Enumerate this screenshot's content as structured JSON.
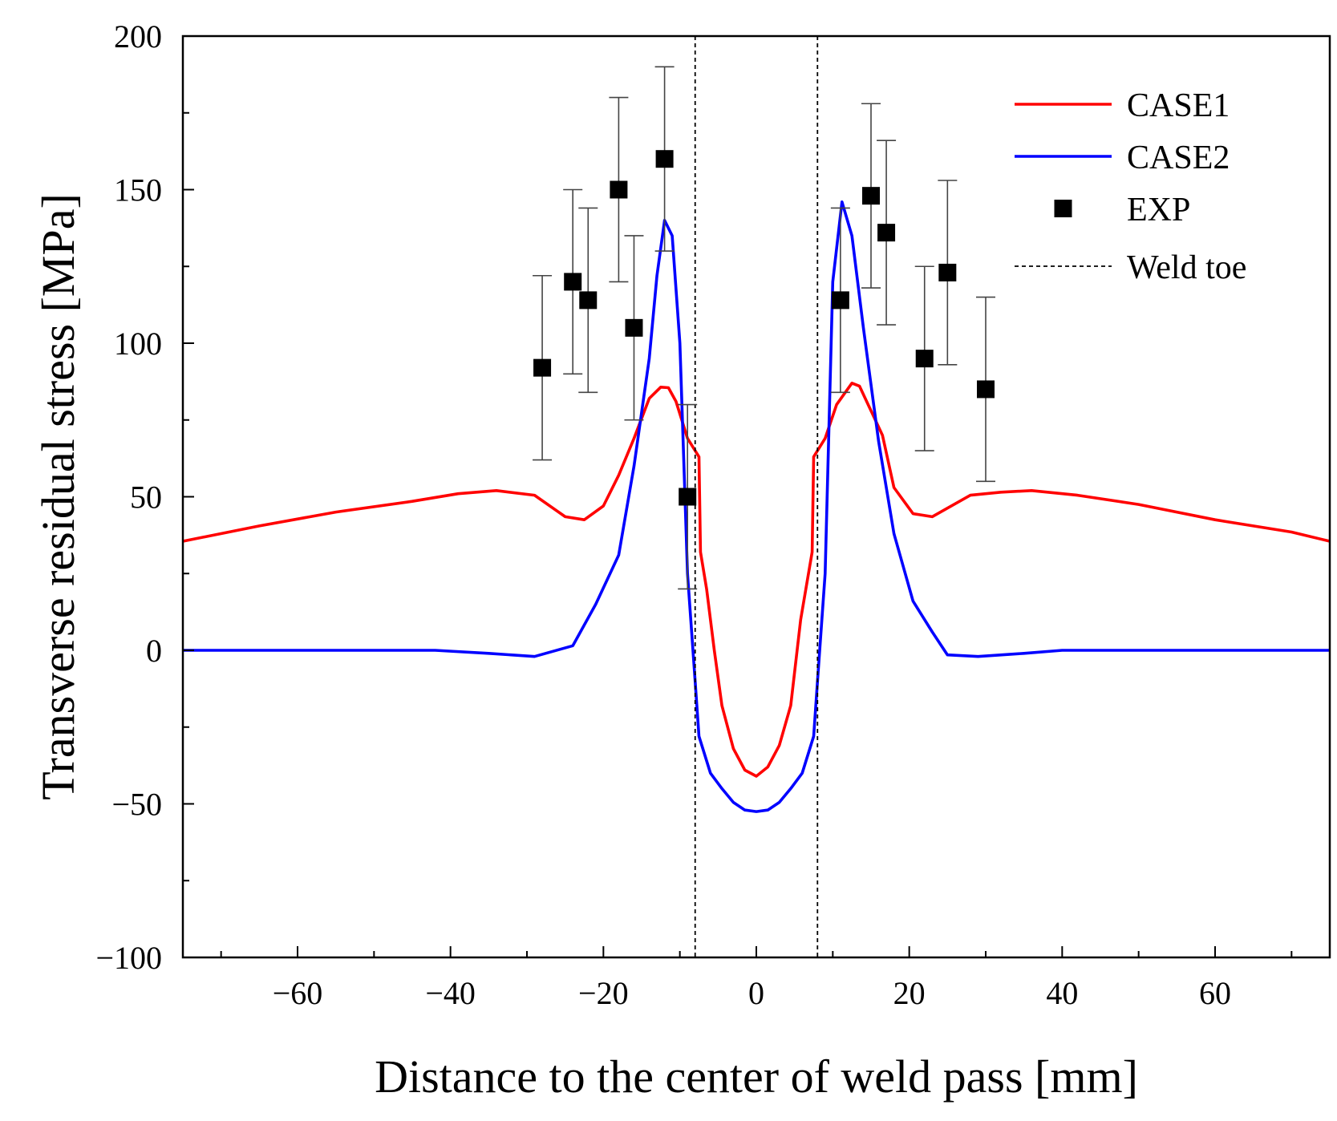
{
  "chart_data": {
    "type": "line",
    "title": "",
    "xlabel": "Distance to the center of weld pass [mm]",
    "ylabel": "Transverse residual stress [MPa]",
    "xlim": [
      -75,
      75
    ],
    "ylim": [
      -100,
      200
    ],
    "xticks": [
      -60,
      -40,
      -20,
      0,
      20,
      40,
      60
    ],
    "yticks": [
      -100,
      -50,
      0,
      50,
      100,
      150,
      200
    ],
    "x_minor_step": 10,
    "y_minor_step": 25,
    "legend_position": "top-right",
    "grid": false,
    "series": [
      {
        "name": "CASE1",
        "kind": "line",
        "color": "#ff0000",
        "points": [
          [
            -75,
            35.5
          ],
          [
            -65,
            40.5
          ],
          [
            -55,
            45
          ],
          [
            -45,
            48.5
          ],
          [
            -39,
            51
          ],
          [
            -34,
            52
          ],
          [
            -29,
            50.5
          ],
          [
            -25,
            43.5
          ],
          [
            -22.5,
            42.5
          ],
          [
            -20,
            47
          ],
          [
            -18,
            57
          ],
          [
            -16,
            69
          ],
          [
            -14,
            82
          ],
          [
            -12.5,
            85.7
          ],
          [
            -11.5,
            85.5
          ],
          [
            -10.5,
            81
          ],
          [
            -9,
            69
          ],
          [
            -7.5,
            63
          ],
          [
            -7.3,
            32
          ],
          [
            -6.5,
            20
          ],
          [
            -5.5,
            0
          ],
          [
            -4.5,
            -18
          ],
          [
            -3,
            -32
          ],
          [
            -1.5,
            -39
          ],
          [
            0,
            -41
          ],
          [
            1.5,
            -38
          ],
          [
            3,
            -31
          ],
          [
            4.5,
            -18
          ],
          [
            5.8,
            10
          ],
          [
            7.3,
            32
          ],
          [
            7.5,
            63
          ],
          [
            9,
            69
          ],
          [
            10.5,
            80
          ],
          [
            12.5,
            87
          ],
          [
            13.5,
            86
          ],
          [
            15,
            78
          ],
          [
            16.5,
            70
          ],
          [
            18,
            53
          ],
          [
            20.5,
            44.5
          ],
          [
            23,
            43.5
          ],
          [
            28,
            50.5
          ],
          [
            32,
            51.5
          ],
          [
            36,
            52
          ],
          [
            42,
            50.5
          ],
          [
            50,
            47.5
          ],
          [
            60,
            42.5
          ],
          [
            70,
            38.5
          ],
          [
            75,
            35.5
          ]
        ]
      },
      {
        "name": "CASE2",
        "kind": "line",
        "color": "#0000ff",
        "points": [
          [
            -75,
            0
          ],
          [
            -60,
            0
          ],
          [
            -42,
            0
          ],
          [
            -35,
            -1
          ],
          [
            -29,
            -2
          ],
          [
            -24,
            1.5
          ],
          [
            -21,
            15
          ],
          [
            -18,
            31
          ],
          [
            -16,
            60
          ],
          [
            -14,
            95
          ],
          [
            -13,
            122
          ],
          [
            -12,
            140
          ],
          [
            -11,
            135
          ],
          [
            -10,
            100
          ],
          [
            -9,
            25
          ],
          [
            -8,
            -10
          ],
          [
            -7.5,
            -28
          ],
          [
            -6,
            -40
          ],
          [
            -4.5,
            -45
          ],
          [
            -3,
            -49.5
          ],
          [
            -1.5,
            -52
          ],
          [
            0,
            -52.5
          ],
          [
            1.5,
            -52
          ],
          [
            3,
            -49.5
          ],
          [
            4.5,
            -45
          ],
          [
            6,
            -40
          ],
          [
            7.5,
            -28
          ],
          [
            8,
            -10
          ],
          [
            9,
            25
          ],
          [
            10,
            120
          ],
          [
            11.2,
            146
          ],
          [
            12.5,
            135
          ],
          [
            14,
            105
          ],
          [
            16,
            68
          ],
          [
            18,
            38
          ],
          [
            20.5,
            16
          ],
          [
            23,
            6
          ],
          [
            25,
            -1.5
          ],
          [
            29,
            -2
          ],
          [
            35,
            -1
          ],
          [
            40,
            0
          ],
          [
            60,
            0
          ],
          [
            75,
            0
          ]
        ]
      },
      {
        "name": "EXP",
        "kind": "scatter",
        "color": "#000000",
        "marker": "square",
        "points": [
          {
            "x": -28,
            "y": 92,
            "err": 30
          },
          {
            "x": -24,
            "y": 120,
            "err": 30
          },
          {
            "x": -22,
            "y": 114,
            "err": 30
          },
          {
            "x": -18,
            "y": 150,
            "err": 30
          },
          {
            "x": -16,
            "y": 105,
            "err": 30
          },
          {
            "x": -12,
            "y": 160,
            "err": 30
          },
          {
            "x": -9,
            "y": 50,
            "err": 30
          },
          {
            "x": 11,
            "y": 114,
            "err": 30
          },
          {
            "x": 15,
            "y": 148,
            "err": 30
          },
          {
            "x": 17,
            "y": 136,
            "err": 30
          },
          {
            "x": 22,
            "y": 95,
            "err": 30
          },
          {
            "x": 25,
            "y": 123,
            "err": 30
          },
          {
            "x": 30,
            "y": 85,
            "err": 30
          }
        ]
      },
      {
        "name": "Weld toe",
        "kind": "vline",
        "color": "#000000",
        "dash": true,
        "x": [
          -8,
          8
        ]
      }
    ]
  }
}
